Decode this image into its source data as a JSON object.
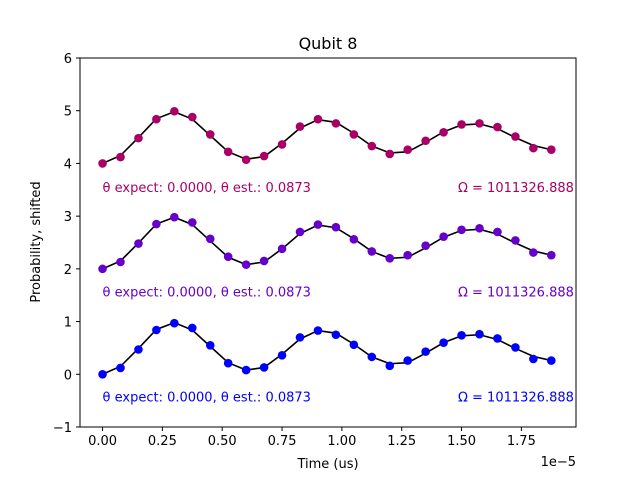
{
  "chart_data": {
    "type": "scatter",
    "title": "Qubit 8",
    "xlabel": "Time (us)",
    "ylabel": "Probability, shifted",
    "x_offset_label": "1e−5",
    "xlim": [
      -9.42e-07,
      1.9782e-05
    ],
    "ylim": [
      -1,
      6
    ],
    "x_ticks": [
      0,
      2.5e-06,
      5e-06,
      7.5e-06,
      1e-05,
      1.25e-05,
      1.5e-05,
      1.75e-05
    ],
    "x_tick_labels": [
      "0.00",
      "0.25",
      "0.50",
      "0.75",
      "1.00",
      "1.25",
      "1.50",
      "1.75"
    ],
    "y_ticks": [
      -1,
      0,
      1,
      2,
      3,
      4,
      5,
      6
    ],
    "y_tick_labels": [
      "−1",
      "0",
      "1",
      "2",
      "3",
      "4",
      "5",
      "6"
    ],
    "grid": false,
    "fit_color": "#000000",
    "x": [
      0,
      7.5e-07,
      1.5e-06,
      2.25e-06,
      3e-06,
      3.75e-06,
      4.5e-06,
      5.25e-06,
      6e-06,
      6.75e-06,
      7.5e-06,
      8.25e-06,
      9e-06,
      9.75e-06,
      1.05e-05,
      1.125e-05,
      1.2e-05,
      1.275e-05,
      1.35e-05,
      1.425e-05,
      1.5e-05,
      1.575e-05,
      1.65e-05,
      1.725e-05,
      1.8e-05,
      1.875e-05
    ],
    "series": [
      {
        "color": "#0000ff",
        "values": [
          0.0,
          0.12,
          0.47,
          0.84,
          0.97,
          0.88,
          0.55,
          0.21,
          0.08,
          0.13,
          0.36,
          0.7,
          0.83,
          0.75,
          0.56,
          0.33,
          0.16,
          0.26,
          0.43,
          0.6,
          0.74,
          0.76,
          0.68,
          0.51,
          0.29,
          0.26
        ],
        "fit": [
          0.0,
          0.15,
          0.49,
          0.85,
          0.98,
          0.84,
          0.53,
          0.22,
          0.08,
          0.13,
          0.38,
          0.67,
          0.83,
          0.78,
          0.57,
          0.33,
          0.2,
          0.22,
          0.4,
          0.6,
          0.73,
          0.75,
          0.66,
          0.49,
          0.34,
          0.26
        ],
        "annotation_left": "θ expect: 0.0000, θ est.: 0.0873",
        "annotation_right": "Ω = 1011326.888",
        "annotation_y": -0.42
      },
      {
        "color": "#6600cc",
        "values": [
          2.0,
          2.13,
          2.48,
          2.85,
          2.98,
          2.88,
          2.57,
          2.23,
          2.08,
          2.15,
          2.38,
          2.7,
          2.84,
          2.79,
          2.56,
          2.33,
          2.2,
          2.26,
          2.44,
          2.61,
          2.74,
          2.77,
          2.7,
          2.54,
          2.31,
          2.26
        ],
        "fit": [
          2.0,
          2.15,
          2.49,
          2.85,
          2.98,
          2.84,
          2.53,
          2.22,
          2.08,
          2.13,
          2.38,
          2.67,
          2.83,
          2.78,
          2.57,
          2.33,
          2.2,
          2.22,
          2.4,
          2.6,
          2.73,
          2.75,
          2.66,
          2.49,
          2.34,
          2.26
        ],
        "annotation_left": "θ expect: 0.0000, θ est.: 0.0873",
        "annotation_right": "Ω = 1011326.888",
        "annotation_y": 1.57
      },
      {
        "color": "#aa0066",
        "values": [
          4.0,
          4.12,
          4.48,
          4.84,
          4.99,
          4.88,
          4.55,
          4.22,
          4.07,
          4.14,
          4.36,
          4.7,
          4.84,
          4.76,
          4.55,
          4.33,
          4.18,
          4.26,
          4.43,
          4.59,
          4.74,
          4.76,
          4.69,
          4.51,
          4.29,
          4.26
        ],
        "fit": [
          4.0,
          4.15,
          4.49,
          4.85,
          4.98,
          4.84,
          4.53,
          4.22,
          4.08,
          4.13,
          4.38,
          4.67,
          4.83,
          4.78,
          4.57,
          4.33,
          4.2,
          4.22,
          4.4,
          4.6,
          4.73,
          4.75,
          4.66,
          4.49,
          4.34,
          4.26
        ],
        "annotation_left": "θ expect: 0.0000, θ est.: 0.0873",
        "annotation_right": "Ω = 1011326.888",
        "annotation_y": 3.55
      }
    ]
  }
}
